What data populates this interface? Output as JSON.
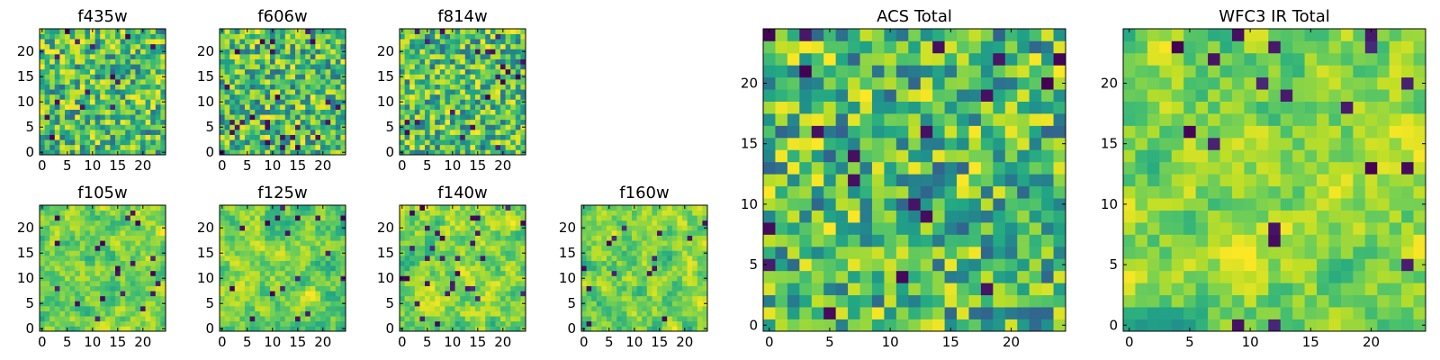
{
  "chart_data": [
    {
      "type": "heatmap",
      "title": "f435w",
      "texture": "noise",
      "seed": 11,
      "grid_size": 25,
      "xticks": [
        "0",
        "5",
        "10",
        "15",
        "20"
      ],
      "yticks": [
        "0",
        "5",
        "10",
        "15",
        "20"
      ],
      "xlim": [
        0,
        24
      ],
      "ylim": [
        0,
        24
      ],
      "colormap": "viridis"
    },
    {
      "type": "heatmap",
      "title": "f606w",
      "texture": "noise",
      "seed": 23,
      "grid_size": 25,
      "xticks": [
        "0",
        "5",
        "10",
        "15",
        "20"
      ],
      "yticks": [
        "0",
        "5",
        "10",
        "15",
        "20"
      ],
      "xlim": [
        0,
        24
      ],
      "ylim": [
        0,
        24
      ],
      "colormap": "viridis"
    },
    {
      "type": "heatmap",
      "title": "f814w",
      "texture": "noise",
      "seed": 37,
      "grid_size": 25,
      "xticks": [
        "0",
        "5",
        "10",
        "15",
        "20"
      ],
      "yticks": [
        "0",
        "5",
        "10",
        "15",
        "20"
      ],
      "xlim": [
        0,
        24
      ],
      "ylim": [
        0,
        24
      ],
      "colormap": "viridis"
    },
    {
      "type": "heatmap",
      "title": "f105w",
      "texture": "smooth",
      "seed": 41,
      "grid_size": 25,
      "xticks": [
        "0",
        "5",
        "10",
        "15",
        "20"
      ],
      "yticks": [
        "0",
        "5",
        "10",
        "15",
        "20"
      ],
      "xlim": [
        0,
        24
      ],
      "ylim": [
        0,
        24
      ],
      "colormap": "viridis"
    },
    {
      "type": "heatmap",
      "title": "f125w",
      "texture": "smooth",
      "seed": 53,
      "grid_size": 25,
      "xticks": [
        "0",
        "5",
        "10",
        "15",
        "20"
      ],
      "yticks": [
        "0",
        "5",
        "10",
        "15",
        "20"
      ],
      "xlim": [
        0,
        24
      ],
      "ylim": [
        0,
        24
      ],
      "colormap": "viridis"
    },
    {
      "type": "heatmap",
      "title": "f140w",
      "texture": "smooth",
      "seed": 67,
      "grid_size": 25,
      "xticks": [
        "0",
        "5",
        "10",
        "15",
        "20"
      ],
      "yticks": [
        "0",
        "5",
        "10",
        "15",
        "20"
      ],
      "xlim": [
        0,
        24
      ],
      "ylim": [
        0,
        24
      ],
      "colormap": "viridis"
    },
    {
      "type": "heatmap",
      "title": "f160w",
      "texture": "smooth",
      "seed": 79,
      "grid_size": 25,
      "xticks": [
        "0",
        "5",
        "10",
        "15",
        "20"
      ],
      "yticks": [
        "0",
        "5",
        "10",
        "15",
        "20"
      ],
      "xlim": [
        0,
        24
      ],
      "ylim": [
        0,
        24
      ],
      "colormap": "viridis"
    },
    {
      "type": "heatmap",
      "title": "ACS Total",
      "texture": "noise",
      "seed": 83,
      "grid_size": 25,
      "xticks": [
        "0",
        "5",
        "10",
        "15",
        "20"
      ],
      "yticks": [
        "0",
        "5",
        "10",
        "15",
        "20"
      ],
      "xlim": [
        0,
        24
      ],
      "ylim": [
        0,
        24
      ],
      "colormap": "viridis"
    },
    {
      "type": "heatmap",
      "title": "WFC3 IR Total",
      "texture": "smooth",
      "seed": 97,
      "grid_size": 25,
      "xticks": [
        "0",
        "5",
        "10",
        "15",
        "20"
      ],
      "yticks": [
        "0",
        "5",
        "10",
        "15",
        "20"
      ],
      "xlim": [
        0,
        24
      ],
      "ylim": [
        0,
        24
      ],
      "colormap": "viridis"
    }
  ]
}
